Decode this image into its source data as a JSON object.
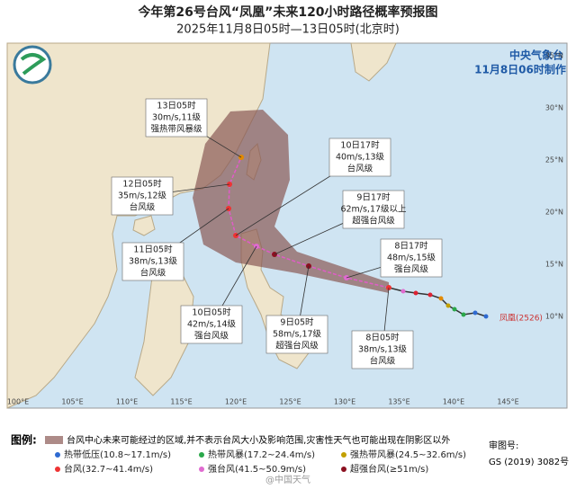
{
  "header": {
    "title": "今年第26号台风“凤凰”未来120小时路径概率预报图",
    "subtitle": "2025年11月8日05时—13日05时(北京时)",
    "agency": "中央气象台",
    "issued": "11月8日06时制作"
  },
  "forecasts": [
    {
      "time": "8日05时",
      "wind": "38m/s,13级",
      "level": "台风级"
    },
    {
      "time": "8日17时",
      "wind": "48m/s,15级",
      "level": "强台风级"
    },
    {
      "time": "9日05时",
      "wind": "58m/s,17级",
      "level": "超强台风级"
    },
    {
      "time": "9日17时",
      "wind": "62m/s,17级以上",
      "level": "超强台风级"
    },
    {
      "time": "10日05时",
      "wind": "42m/s,14级",
      "level": "强台风级"
    },
    {
      "time": "10日17时",
      "wind": "40m/s,13级",
      "level": "台风级"
    },
    {
      "time": "11日05时",
      "wind": "38m/s,13级",
      "level": "台风级"
    },
    {
      "time": "12日05时",
      "wind": "35m/s,12级",
      "level": "台风级"
    },
    {
      "time": "13日05时",
      "wind": "30m/s,11级",
      "level": "强热带风暴级"
    }
  ],
  "typhoon_label": "凤凰(2526)",
  "longitudes": [
    "100°E",
    "105°E",
    "110°E",
    "115°E",
    "120°E",
    "125°E",
    "130°E",
    "135°E",
    "140°E",
    "145°E"
  ],
  "latitudes": [
    "35°N",
    "30°N",
    "25°N",
    "20°N",
    "15°N",
    "10°N"
  ],
  "legend": {
    "title": "图例:",
    "cone": "台风中心未来可能经过的区域,并不表示台风大小及影响范围,灾害性天气也可能出现在阴影区以外",
    "items": [
      "热带低压(10.8~17.1m/s)",
      "热带风暴(17.2~24.4m/s)",
      "强热带风暴(24.5~32.6m/s)",
      "台风(32.7~41.4m/s)",
      "强台风(41.5~50.9m/s)",
      "超强台风(≥51m/s)"
    ]
  },
  "approval": {
    "label": "审图号:",
    "number": "GS (2019) 3082号"
  },
  "watermark": "@中国天气"
}
